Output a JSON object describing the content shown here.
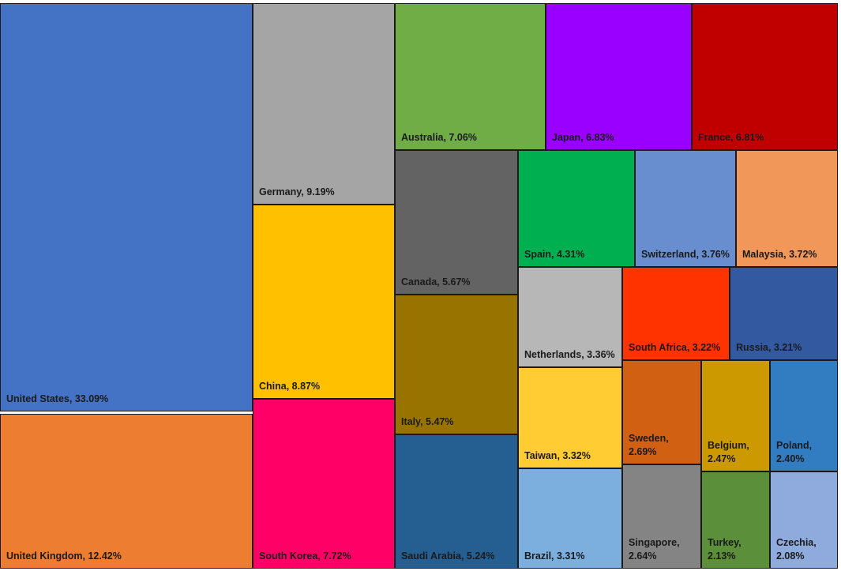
{
  "chart_data": {
    "type": "treemap",
    "unit": "%",
    "items": [
      {
        "label": "United States",
        "value": 33.09,
        "text": "United States, 33.09%",
        "color": "#4472C4"
      },
      {
        "label": "United Kingdom",
        "value": 12.42,
        "text": "United Kingdom, 12.42%",
        "color": "#ED7D31"
      },
      {
        "label": "Germany",
        "value": 9.19,
        "text": "Germany, 9.19%",
        "color": "#A5A5A5"
      },
      {
        "label": "China",
        "value": 8.87,
        "text": "China, 8.87%",
        "color": "#FFC000"
      },
      {
        "label": "South Korea",
        "value": 7.72,
        "text": "South Korea, 7.72%",
        "color": "#FF0066"
      },
      {
        "label": "Australia",
        "value": 7.06,
        "text": "Australia, 7.06%",
        "color": "#70AD47"
      },
      {
        "label": "Japan",
        "value": 6.83,
        "text": "Japan, 6.83%",
        "color": "#9900FF"
      },
      {
        "label": "France",
        "value": 6.81,
        "text": "France, 6.81%",
        "color": "#C00000"
      },
      {
        "label": "Canada",
        "value": 5.67,
        "text": "Canada, 5.67%",
        "color": "#636363"
      },
      {
        "label": "Italy",
        "value": 5.47,
        "text": "Italy, 5.47%",
        "color": "#997300"
      },
      {
        "label": "Saudi Arabia",
        "value": 5.24,
        "text": "Saudi Arabia, 5.24%",
        "color": "#255E91"
      },
      {
        "label": "Spain",
        "value": 4.31,
        "text": "Spain, 4.31%",
        "color": "#00B050"
      },
      {
        "label": "Switzerland",
        "value": 3.76,
        "text": "Switzerland, 3.76%",
        "color": "#698ED0"
      },
      {
        "label": "Malaysia",
        "value": 3.72,
        "text": "Malaysia, 3.72%",
        "color": "#F1975A"
      },
      {
        "label": "Netherlands",
        "value": 3.36,
        "text": "Netherlands, 3.36%",
        "color": "#B7B7B7"
      },
      {
        "label": "South Africa",
        "value": 3.22,
        "text": "South Africa, 3.22%",
        "color": "#FF3300"
      },
      {
        "label": "Russia",
        "value": 3.21,
        "text": "Russia, 3.21%",
        "color": "#335AA1"
      },
      {
        "label": "Taiwan",
        "value": 3.32,
        "text": "Taiwan, 3.32%",
        "color": "#FFCD33"
      },
      {
        "label": "Brazil",
        "value": 3.31,
        "text": "Brazil, 3.31%",
        "color": "#7CAFDD"
      },
      {
        "label": "Sweden",
        "value": 2.69,
        "text": "Sweden,\n2.69%",
        "color": "#D26012"
      },
      {
        "label": "Belgium",
        "value": 2.47,
        "text": "Belgium,\n2.47%",
        "color": "#CC9A00"
      },
      {
        "label": "Poland",
        "value": 2.4,
        "text": "Poland,\n2.40%",
        "color": "#327DC2"
      },
      {
        "label": "Singapore",
        "value": 2.64,
        "text": "Singapore,\n2.64%",
        "color": "#848484"
      },
      {
        "label": "Turkey",
        "value": 2.13,
        "text": "Turkey,\n2.13%",
        "color": "#5B8F3A"
      },
      {
        "label": "Czechia",
        "value": 2.08,
        "text": "Czechia,\n2.08%",
        "color": "#8FAADC"
      }
    ]
  }
}
